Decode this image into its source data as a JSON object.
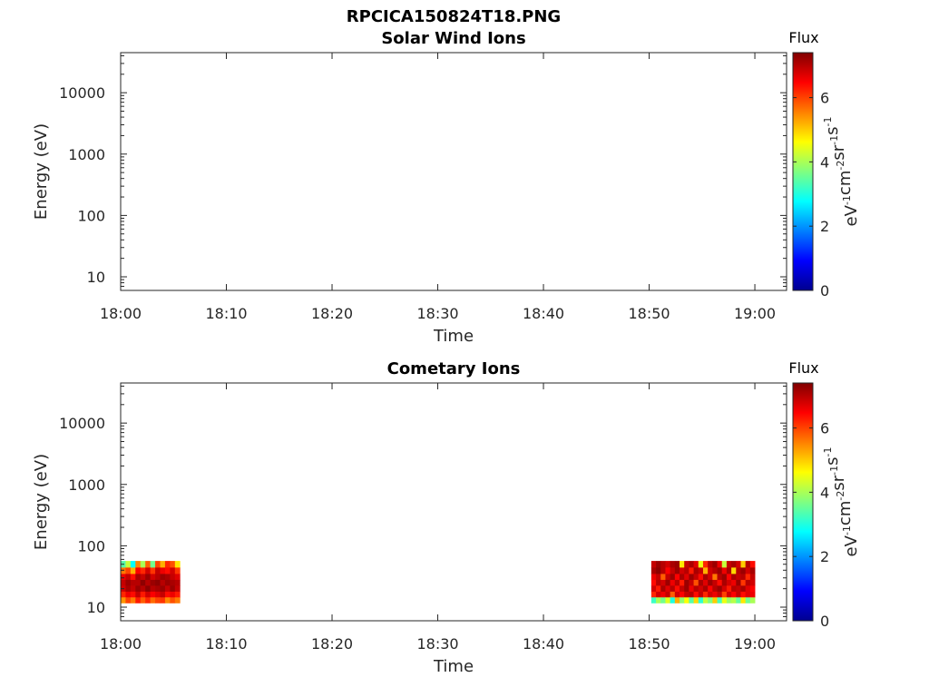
{
  "figure": {
    "file_title": "RPCICA150824T18.PNG",
    "colormap": [
      "#00008f",
      "#0000ff",
      "#0080ff",
      "#00ffff",
      "#80ff80",
      "#ffff00",
      "#ff8000",
      "#ff0000",
      "#800000"
    ]
  },
  "chart_data": [
    {
      "type": "heatmap",
      "title": "Solar Wind Ions",
      "xlabel": "Time",
      "ylabel": "Energy (eV)",
      "xlim": [
        "18:00",
        "19:03"
      ],
      "ylim": [
        6,
        45000
      ],
      "yscale": "log",
      "xticks": [
        "18:00",
        "18:10",
        "18:20",
        "18:30",
        "18:40",
        "18:50",
        "19:00"
      ],
      "yticks": [
        "10",
        "100",
        "1000",
        "10000"
      ],
      "colorbar": {
        "title": "Flux",
        "label": "eV-1cm-2sr-1s-1",
        "range": [
          0,
          7.4
        ],
        "ticks": [
          "0",
          "2",
          "4",
          "6"
        ]
      },
      "blocks": []
    },
    {
      "type": "heatmap",
      "title": "Cometary Ions",
      "xlabel": "Time",
      "ylabel": "Energy (eV)",
      "xlim": [
        "18:00",
        "19:03"
      ],
      "ylim": [
        6,
        45000
      ],
      "yscale": "log",
      "xticks": [
        "18:00",
        "18:10",
        "18:20",
        "18:30",
        "18:40",
        "18:50",
        "19:00"
      ],
      "yticks": [
        "10",
        "100",
        "1000",
        "10000"
      ],
      "colorbar": {
        "title": "Flux",
        "label": "eV-1cm-2sr-1s-1",
        "range": [
          0,
          7.4
        ],
        "ticks": [
          "0",
          "2",
          "4",
          "6"
        ]
      },
      "blocks": [
        {
          "x_start": "18:00",
          "x_end": "18:05.6",
          "energy_levels": [
            50,
            39,
            31,
            25,
            20,
            16,
            13
          ],
          "flux": [
            [
              3.4,
              4.2,
              2.8,
              5.5,
              4.0,
              5.8,
              3.6,
              6.0,
              5.2,
              6.2,
              5.9,
              4.8
            ],
            [
              5.6,
              6.0,
              5.2,
              6.5,
              6.2,
              6.8,
              6.1,
              6.9,
              6.6,
              6.4,
              6.8,
              6.1
            ],
            [
              6.6,
              6.9,
              6.4,
              7.1,
              6.9,
              7.2,
              6.8,
              7.0,
              7.2,
              7.1,
              6.9,
              6.7
            ],
            [
              6.9,
              7.2,
              7.0,
              7.0,
              7.3,
              7.0,
              7.2,
              7.3,
              7.0,
              7.2,
              7.1,
              7.0
            ],
            [
              6.8,
              7.1,
              6.9,
              7.2,
              7.0,
              7.3,
              7.0,
              7.1,
              7.2,
              6.9,
              7.2,
              6.9
            ],
            [
              6.2,
              6.6,
              6.4,
              6.9,
              6.3,
              6.8,
              6.5,
              6.7,
              6.9,
              6.4,
              6.6,
              6.3
            ],
            [
              5.4,
              6.0,
              5.6,
              6.3,
              5.8,
              6.2,
              5.7,
              6.0,
              6.1,
              5.5,
              5.9,
              5.6
            ]
          ]
        },
        {
          "x_start": "18:50.2",
          "x_end": "19:00",
          "energy_levels": [
            50,
            39,
            31,
            25,
            20,
            16,
            13
          ],
          "flux": [
            [
              6.9,
              7.2,
              7.0,
              6.8,
              7.1,
              7.2,
              4.8,
              6.9,
              7.1,
              6.7,
              4.5,
              6.2,
              7.0,
              7.2,
              6.6,
              4.2,
              6.9,
              7.1,
              6.8,
              5.0,
              7.0,
              6.4
            ],
            [
              7.1,
              7.3,
              7.0,
              6.5,
              6.9,
              7.2,
              6.8,
              7.0,
              6.3,
              7.1,
              6.9,
              5.2,
              6.8,
              7.0,
              7.2,
              6.6,
              7.1,
              4.9,
              7.0,
              7.2,
              6.8,
              7.1
            ],
            [
              6.6,
              6.9,
              5.8,
              6.9,
              7.2,
              6.5,
              7.1,
              6.7,
              7.2,
              6.9,
              6.4,
              7.1,
              6.8,
              5.6,
              7.0,
              7.2,
              6.5,
              7.1,
              6.9,
              7.0,
              6.2,
              6.9
            ],
            [
              6.4,
              7.0,
              6.8,
              7.2,
              6.6,
              7.0,
              6.3,
              7.2,
              6.9,
              5.9,
              7.1,
              6.7,
              7.2,
              6.9,
              6.4,
              7.1,
              6.8,
              6.6,
              7.2,
              6.1,
              7.0,
              6.8
            ],
            [
              6.8,
              6.3,
              7.1,
              6.7,
              7.0,
              6.4,
              6.9,
              7.2,
              6.6,
              7.0,
              6.8,
              7.1,
              6.5,
              7.0,
              7.2,
              6.8,
              6.3,
              7.0,
              6.9,
              7.1,
              6.7,
              6.5
            ],
            [
              6.2,
              6.8,
              6.6,
              6.9,
              5.8,
              6.8,
              6.5,
              6.9,
              7.0,
              6.4,
              6.9,
              6.2,
              6.8,
              6.6,
              6.9,
              6.0,
              6.8,
              6.5,
              6.9,
              6.4,
              6.7,
              6.6
            ],
            [
              3.2,
              4.0,
              3.6,
              4.4,
              3.0,
              5.2,
              3.8,
              4.6,
              3.4,
              4.9,
              3.1,
              4.2,
              3.7,
              5.0,
              3.3,
              4.5,
              3.9,
              4.1,
              3.5,
              4.8,
              3.6,
              4.0
            ]
          ]
        }
      ]
    }
  ]
}
